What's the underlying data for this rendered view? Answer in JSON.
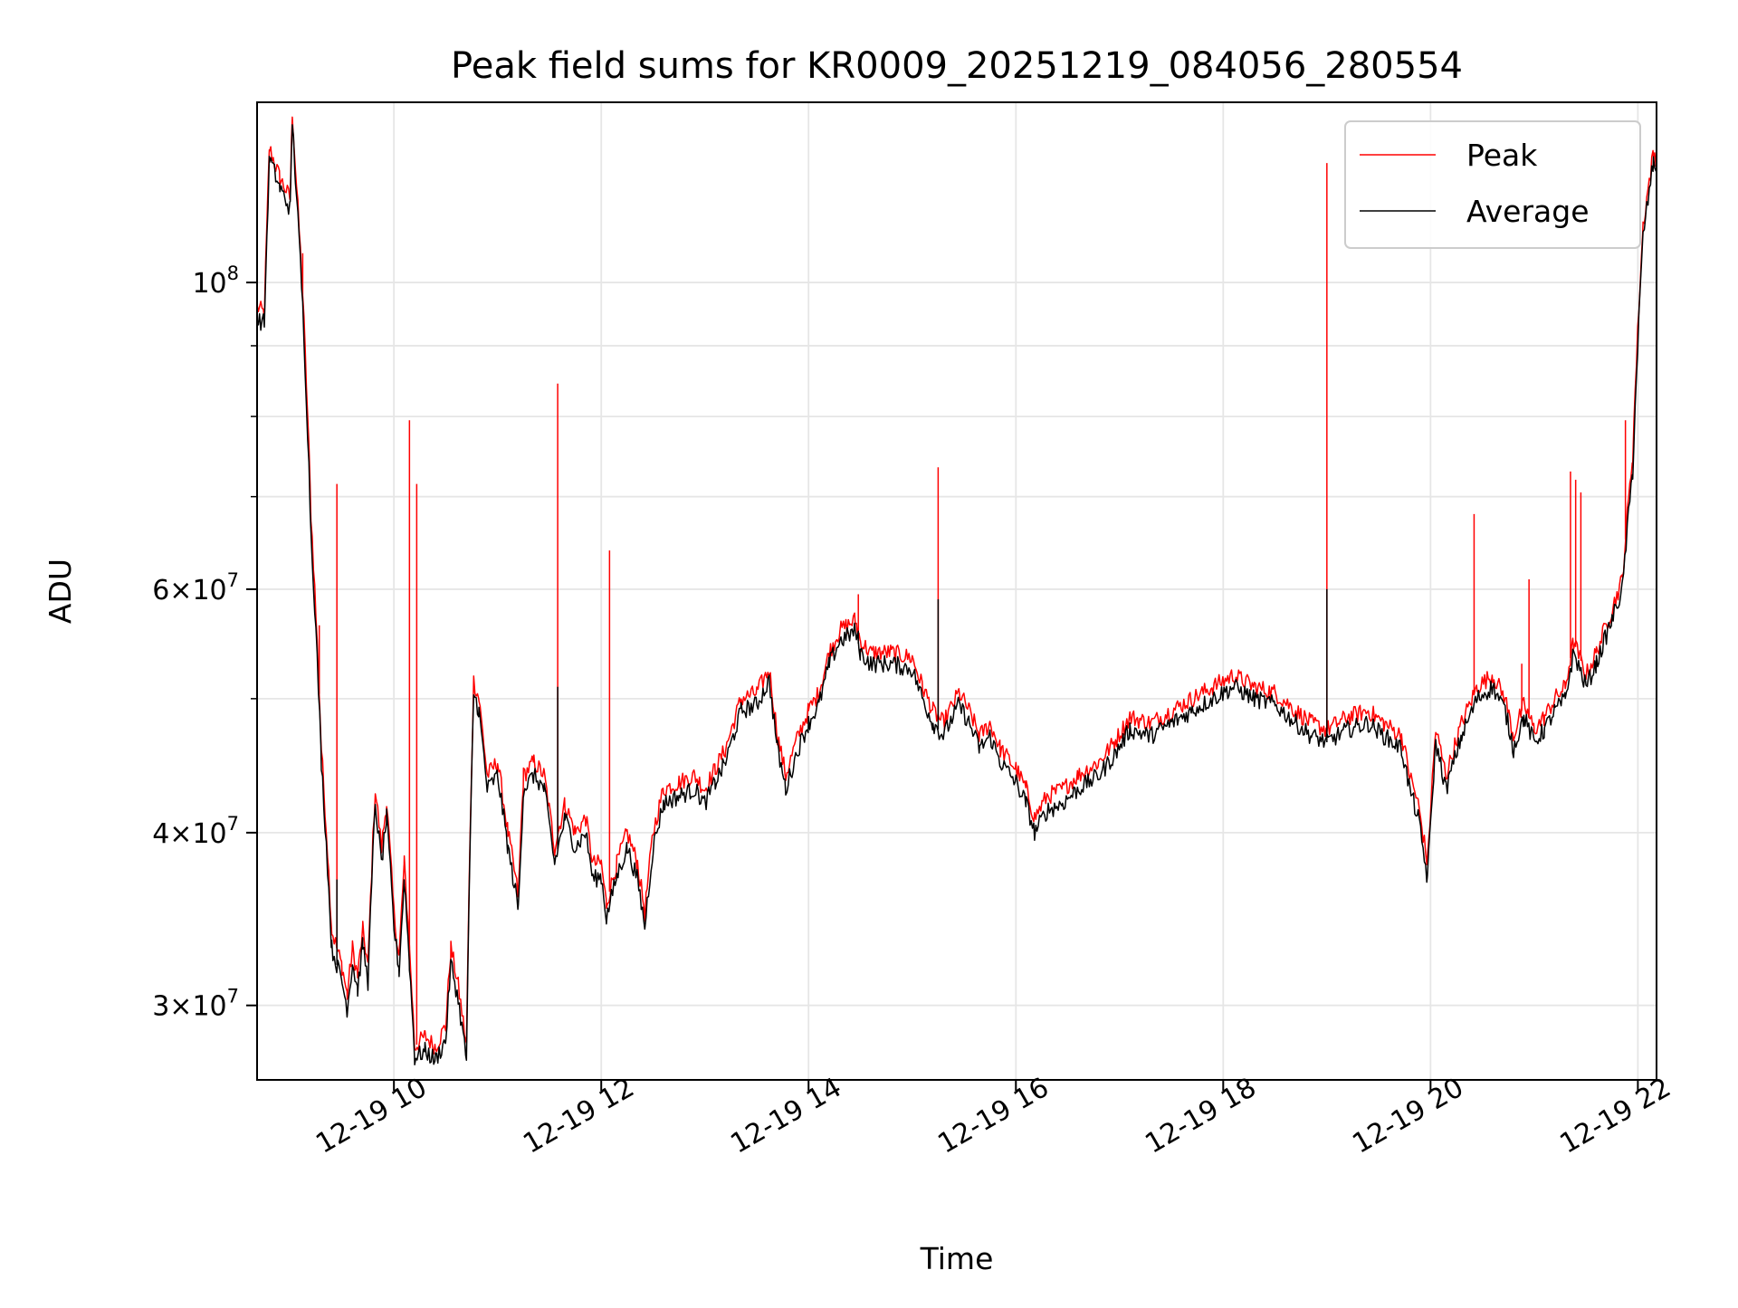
{
  "chart_data": {
    "type": "line",
    "title": "Peak field sums for KR0009_20251219_084056_280554",
    "xlabel": "Time",
    "ylabel": "ADU",
    "yscale": "log",
    "grid": true,
    "legend_placement": "top-right",
    "xlim_hours": [
      8.68,
      22.18
    ],
    "ylim": [
      26500000,
      135000000
    ],
    "x_ticks": [
      {
        "hour": 10,
        "label": "12-19 10"
      },
      {
        "hour": 12,
        "label": "12-19 12"
      },
      {
        "hour": 14,
        "label": "12-19 14"
      },
      {
        "hour": 16,
        "label": "12-19 16"
      },
      {
        "hour": 18,
        "label": "12-19 18"
      },
      {
        "hour": 20,
        "label": "12-19 20"
      },
      {
        "hour": 22,
        "label": "12-19 22"
      }
    ],
    "y_ticks": [
      {
        "value": 30000000,
        "mantissa": "3",
        "exponent": "7"
      },
      {
        "value": 40000000,
        "mantissa": "4",
        "exponent": "7"
      },
      {
        "value": 60000000,
        "mantissa": "6",
        "exponent": "7"
      },
      {
        "value": 100000000,
        "mantissa": "10",
        "exponent": "8"
      }
    ],
    "y_minor_ticks": [
      50000000,
      70000000,
      80000000,
      90000000
    ],
    "series": [
      {
        "name": "Peak",
        "color": "#ff0000",
        "points": [
          [
            8.68,
            96
          ],
          [
            8.75,
            95
          ],
          [
            8.8,
            125
          ],
          [
            8.9,
            119
          ],
          [
            9.0,
            115
          ],
          [
            9.02,
            133
          ],
          [
            9.05,
            121
          ],
          [
            9.12,
            98
          ],
          [
            9.2,
            68
          ],
          [
            9.3,
            46
          ],
          [
            9.4,
            34
          ],
          [
            9.5,
            32
          ],
          [
            9.55,
            30.5
          ],
          [
            9.6,
            33
          ],
          [
            9.65,
            31.5
          ],
          [
            9.7,
            34
          ],
          [
            9.75,
            32
          ],
          [
            9.82,
            43
          ],
          [
            9.88,
            39
          ],
          [
            9.93,
            42
          ],
          [
            10.0,
            35
          ],
          [
            10.05,
            32.5
          ],
          [
            10.1,
            38
          ],
          [
            10.15,
            33
          ],
          [
            10.2,
            28
          ],
          [
            10.3,
            28.5
          ],
          [
            10.4,
            28
          ],
          [
            10.5,
            29
          ],
          [
            10.55,
            33
          ],
          [
            10.62,
            31
          ],
          [
            10.7,
            28
          ],
          [
            10.77,
            51.5
          ],
          [
            10.82,
            50
          ],
          [
            10.9,
            44
          ],
          [
            11.0,
            45
          ],
          [
            11.1,
            40
          ],
          [
            11.2,
            36
          ],
          [
            11.25,
            44
          ],
          [
            11.35,
            45
          ],
          [
            11.45,
            44
          ],
          [
            11.55,
            39
          ],
          [
            11.65,
            42
          ],
          [
            11.75,
            40
          ],
          [
            11.85,
            41
          ],
          [
            11.92,
            38
          ],
          [
            12.0,
            38
          ],
          [
            12.05,
            35.5
          ],
          [
            12.15,
            38
          ],
          [
            12.25,
            40
          ],
          [
            12.35,
            38
          ],
          [
            12.42,
            35
          ],
          [
            12.5,
            40
          ],
          [
            12.6,
            43
          ],
          [
            12.75,
            43.5
          ],
          [
            12.9,
            44
          ],
          [
            13.0,
            43
          ],
          [
            13.1,
            44.5
          ],
          [
            13.2,
            46
          ],
          [
            13.35,
            50
          ],
          [
            13.5,
            50.5
          ],
          [
            13.62,
            52.5
          ],
          [
            13.7,
            47
          ],
          [
            13.78,
            44
          ],
          [
            13.9,
            47
          ],
          [
            14.0,
            49
          ],
          [
            14.1,
            50.5
          ],
          [
            14.2,
            54
          ],
          [
            14.3,
            56
          ],
          [
            14.45,
            57
          ],
          [
            14.5,
            55
          ],
          [
            14.6,
            54
          ],
          [
            14.8,
            54
          ],
          [
            15.0,
            53.5
          ],
          [
            15.1,
            51
          ],
          [
            15.2,
            49
          ],
          [
            15.3,
            48
          ],
          [
            15.45,
            50.5
          ],
          [
            15.55,
            49
          ],
          [
            15.65,
            47
          ],
          [
            15.75,
            48
          ],
          [
            15.85,
            46
          ],
          [
            16.0,
            44.5
          ],
          [
            16.1,
            43
          ],
          [
            16.18,
            41
          ],
          [
            16.3,
            42.5
          ],
          [
            16.45,
            43
          ],
          [
            16.6,
            44
          ],
          [
            16.8,
            45
          ],
          [
            16.95,
            46.5
          ],
          [
            17.1,
            48.5
          ],
          [
            17.3,
            48
          ],
          [
            17.5,
            49
          ],
          [
            17.7,
            50
          ],
          [
            17.9,
            51
          ],
          [
            18.1,
            52
          ],
          [
            18.3,
            51
          ],
          [
            18.5,
            50.5
          ],
          [
            18.7,
            49
          ],
          [
            18.85,
            48
          ],
          [
            19.0,
            47.5
          ],
          [
            19.2,
            48.5
          ],
          [
            19.4,
            49
          ],
          [
            19.55,
            48
          ],
          [
            19.72,
            47
          ],
          [
            19.8,
            44
          ],
          [
            19.88,
            42
          ],
          [
            19.97,
            38
          ],
          [
            20.05,
            47.5
          ],
          [
            20.15,
            44
          ],
          [
            20.3,
            48
          ],
          [
            20.45,
            51
          ],
          [
            20.6,
            52
          ],
          [
            20.72,
            50
          ],
          [
            20.8,
            47
          ],
          [
            20.9,
            49.5
          ],
          [
            21.0,
            47.5
          ],
          [
            21.1,
            48.5
          ],
          [
            21.2,
            50
          ],
          [
            21.3,
            51
          ],
          [
            21.38,
            55
          ],
          [
            21.5,
            52
          ],
          [
            21.6,
            54
          ],
          [
            21.75,
            58
          ],
          [
            21.85,
            61
          ],
          [
            21.95,
            75
          ],
          [
            22.05,
            110
          ],
          [
            22.15,
            124
          ],
          [
            22.18,
            123
          ]
        ],
        "spikes": [
          [
            9.12,
            105
          ],
          [
            9.28,
            56.5
          ],
          [
            9.45,
            71.5
          ],
          [
            10.15,
            79.5
          ],
          [
            10.22,
            71.5
          ],
          [
            11.58,
            84.5
          ],
          [
            12.08,
            64
          ],
          [
            14.48,
            59.5
          ],
          [
            15.25,
            73.5
          ],
          [
            19.0,
            122
          ],
          [
            20.42,
            68
          ],
          [
            20.88,
            53
          ],
          [
            20.95,
            61
          ],
          [
            21.35,
            73
          ],
          [
            21.4,
            72
          ],
          [
            21.45,
            70.5
          ],
          [
            21.88,
            79.5
          ]
        ]
      },
      {
        "name": "Average",
        "color": "#000000",
        "points": [
          [
            8.68,
            94
          ],
          [
            8.75,
            93.5
          ],
          [
            8.8,
            123
          ],
          [
            8.9,
            117
          ],
          [
            9.0,
            113
          ],
          [
            9.02,
            131
          ],
          [
            9.05,
            119
          ],
          [
            9.12,
            96
          ],
          [
            9.2,
            66
          ],
          [
            9.3,
            45
          ],
          [
            9.4,
            33
          ],
          [
            9.5,
            31.2
          ],
          [
            9.55,
            29.8
          ],
          [
            9.6,
            32.2
          ],
          [
            9.65,
            30.8
          ],
          [
            9.7,
            33.2
          ],
          [
            9.75,
            31.2
          ],
          [
            9.82,
            42
          ],
          [
            9.88,
            38
          ],
          [
            9.93,
            41
          ],
          [
            10.0,
            34.2
          ],
          [
            10.05,
            31.8
          ],
          [
            10.1,
            37
          ],
          [
            10.15,
            32.2
          ],
          [
            10.2,
            27.5
          ],
          [
            10.3,
            27.8
          ],
          [
            10.4,
            27.4
          ],
          [
            10.5,
            28.3
          ],
          [
            10.55,
            32.2
          ],
          [
            10.62,
            30.3
          ],
          [
            10.7,
            27.4
          ],
          [
            10.77,
            50.5
          ],
          [
            10.82,
            49
          ],
          [
            10.9,
            43
          ],
          [
            11.0,
            44
          ],
          [
            11.1,
            39
          ],
          [
            11.2,
            35.2
          ],
          [
            11.25,
            43
          ],
          [
            11.35,
            44
          ],
          [
            11.45,
            43
          ],
          [
            11.55,
            38
          ],
          [
            11.65,
            41
          ],
          [
            11.75,
            39
          ],
          [
            11.85,
            40
          ],
          [
            11.92,
            37
          ],
          [
            12.0,
            37.2
          ],
          [
            12.05,
            34.7
          ],
          [
            12.15,
            37.2
          ],
          [
            12.25,
            39
          ],
          [
            12.35,
            37
          ],
          [
            12.42,
            34.2
          ],
          [
            12.5,
            39
          ],
          [
            12.6,
            42
          ],
          [
            12.75,
            42.5
          ],
          [
            12.9,
            43
          ],
          [
            13.0,
            42
          ],
          [
            13.1,
            43.5
          ],
          [
            13.2,
            45
          ],
          [
            13.35,
            49
          ],
          [
            13.5,
            49.5
          ],
          [
            13.62,
            51.5
          ],
          [
            13.7,
            46
          ],
          [
            13.78,
            43
          ],
          [
            13.9,
            46
          ],
          [
            14.0,
            48
          ],
          [
            14.1,
            49.5
          ],
          [
            14.2,
            53
          ],
          [
            14.3,
            55
          ],
          [
            14.45,
            56
          ],
          [
            14.5,
            54
          ],
          [
            14.6,
            53
          ],
          [
            14.8,
            53
          ],
          [
            15.0,
            52.5
          ],
          [
            15.1,
            50
          ],
          [
            15.2,
            48
          ],
          [
            15.3,
            47
          ],
          [
            15.45,
            49.5
          ],
          [
            15.55,
            48
          ],
          [
            15.65,
            46
          ],
          [
            15.75,
            47
          ],
          [
            15.85,
            45
          ],
          [
            16.0,
            43.5
          ],
          [
            16.1,
            42
          ],
          [
            16.18,
            40
          ],
          [
            16.3,
            41.5
          ],
          [
            16.45,
            42
          ],
          [
            16.6,
            43
          ],
          [
            16.8,
            44
          ],
          [
            16.95,
            45.5
          ],
          [
            17.1,
            47.5
          ],
          [
            17.3,
            47
          ],
          [
            17.5,
            48
          ],
          [
            17.7,
            49
          ],
          [
            17.9,
            50
          ],
          [
            18.1,
            51
          ],
          [
            18.3,
            50
          ],
          [
            18.5,
            49.5
          ],
          [
            18.7,
            48
          ],
          [
            18.85,
            47
          ],
          [
            19.0,
            46.5
          ],
          [
            19.2,
            47.5
          ],
          [
            19.4,
            48
          ],
          [
            19.55,
            47
          ],
          [
            19.72,
            46
          ],
          [
            19.8,
            43
          ],
          [
            19.88,
            41
          ],
          [
            19.97,
            37
          ],
          [
            20.05,
            46.5
          ],
          [
            20.15,
            43
          ],
          [
            20.3,
            47
          ],
          [
            20.45,
            50
          ],
          [
            20.6,
            51
          ],
          [
            20.72,
            49
          ],
          [
            20.8,
            46
          ],
          [
            20.9,
            48.5
          ],
          [
            21.0,
            46.5
          ],
          [
            21.1,
            47.5
          ],
          [
            21.2,
            49
          ],
          [
            21.3,
            50
          ],
          [
            21.38,
            54
          ],
          [
            21.5,
            51
          ],
          [
            21.6,
            53
          ],
          [
            21.75,
            57
          ],
          [
            21.85,
            60
          ],
          [
            21.95,
            73
          ],
          [
            22.05,
            108
          ],
          [
            22.15,
            122
          ],
          [
            22.18,
            121
          ]
        ],
        "spikes": [
          [
            9.45,
            37
          ],
          [
            11.58,
            51
          ],
          [
            14.48,
            56
          ],
          [
            15.25,
            59
          ],
          [
            19.0,
            60
          ]
        ]
      }
    ]
  }
}
